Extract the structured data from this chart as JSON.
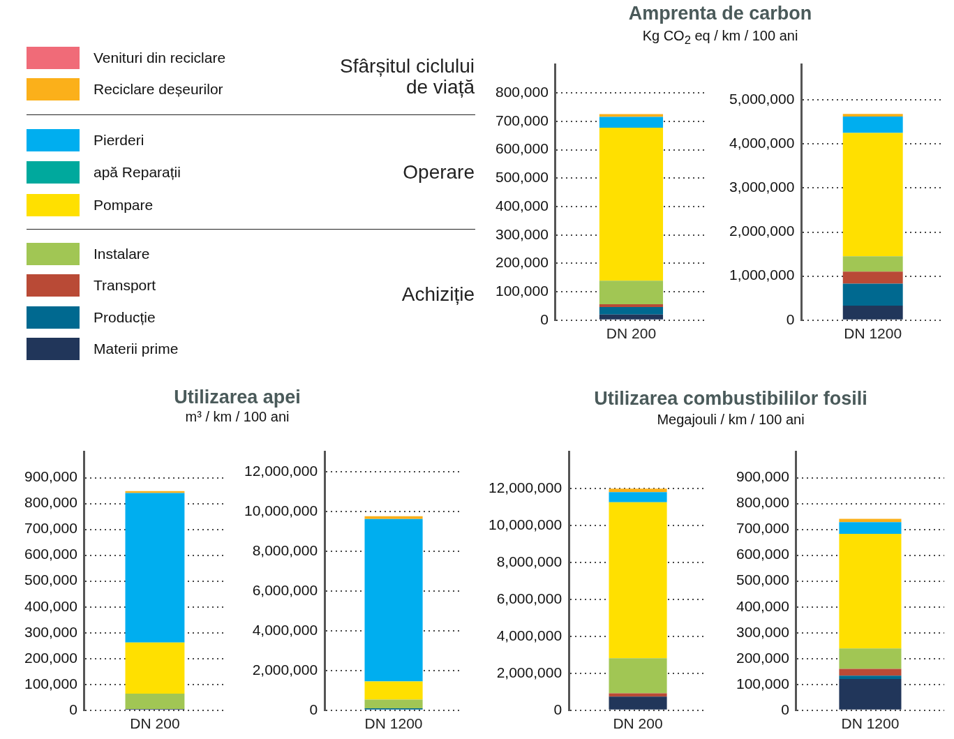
{
  "chart_data": [
    {
      "type": "bar",
      "title": "Amprenta de carbon",
      "subtitle": "Kg CO$_{2}$ eq / km / 100 ani",
      "categories": [
        "DN 200"
      ],
      "stacked": true,
      "grid": "y",
      "legend": "left",
      "annotations": [
        "Sfârșitul ciclului de viață",
        "Operare",
        "Achiziție"
      ],
      "ylim": [
        0,
        900000
      ],
      "yticks": [
        {
          "value": 0,
          "label": "0"
        },
        {
          "value": 100000,
          "label": "100,000"
        },
        {
          "value": 200000,
          "label": "200,000"
        },
        {
          "value": 300000,
          "label": "300,000"
        },
        {
          "value": 400000,
          "label": "400,000"
        },
        {
          "value": 500000,
          "label": "500,000"
        },
        {
          "value": 600000,
          "label": "600,000"
        },
        {
          "value": 700000,
          "label": "700,000"
        },
        {
          "value": 800000,
          "label": "800,000"
        }
      ],
      "series": [
        {
          "name": "Materii prime",
          "color": "#21365a",
          "values": [
            20000
          ]
        },
        {
          "name": "Producție",
          "color": "#006990",
          "values": [
            26000
          ]
        },
        {
          "name": "Transport",
          "color": "#b94a36",
          "values": [
            10000
          ]
        },
        {
          "name": "Instalare",
          "color": "#a1c654",
          "values": [
            83000
          ]
        },
        {
          "name": "Pompare",
          "color": "#ffe000",
          "values": [
            539000
          ]
        },
        {
          "name": "apă Reparații",
          "color": "#00a99d",
          "values": [
            null
          ]
        },
        {
          "name": "Pierderi",
          "color": "#00aeef",
          "values": [
            38000
          ]
        },
        {
          "name": "Reciclare deșeurilor",
          "color": "#fbb01a",
          "values": [
            10000
          ]
        },
        {
          "name": "Venituri din reciclare",
          "color": "#f06b78",
          "values": [
            null
          ]
        }
      ]
    },
    {
      "type": "bar",
      "categories": [
        "DN 1200"
      ],
      "stacked": true,
      "grid": "y",
      "ylim": [
        0,
        5800000
      ],
      "yticks": [
        {
          "value": 0,
          "label": "0"
        },
        {
          "value": 1000000,
          "label": "1,000,000"
        },
        {
          "value": 2000000,
          "label": "2,000,000"
        },
        {
          "value": 3000000,
          "label": "3,000,000"
        },
        {
          "value": 4000000,
          "label": "4,000,000"
        },
        {
          "value": 5000000,
          "label": "5,000,000"
        }
      ],
      "series": [
        {
          "color": "#21365a",
          "values": [
            330000
          ]
        },
        {
          "color": "#006990",
          "values": [
            500000
          ]
        },
        {
          "color": "#b94a36",
          "values": [
            270000
          ]
        },
        {
          "color": "#a1c654",
          "values": [
            350000
          ]
        },
        {
          "color": "#ffe000",
          "values": [
            2800000
          ]
        },
        {
          "color": "#00a99d",
          "values": [
            null
          ]
        },
        {
          "color": "#00aeef",
          "values": [
            370000
          ]
        },
        {
          "color": "#fbb01a",
          "values": [
            60000
          ]
        },
        {
          "color": "#f06b78",
          "values": [
            null
          ]
        }
      ]
    },
    {
      "type": "bar",
      "title": "Utilizarea apei",
      "subtitle": "m³ / km / 100 ani",
      "categories": [
        "DN 200"
      ],
      "stacked": true,
      "grid": "y",
      "ylim": [
        0,
        1000000
      ],
      "yticks": [
        {
          "value": 0,
          "label": "0"
        },
        {
          "value": 100000,
          "label": "100,000"
        },
        {
          "value": 200000,
          "label": "200,000"
        },
        {
          "value": 300000,
          "label": "300,000"
        },
        {
          "value": 400000,
          "label": "400,000"
        },
        {
          "value": 500000,
          "label": "500,000"
        },
        {
          "value": 600000,
          "label": "600,000"
        },
        {
          "value": 700000,
          "label": "700,000"
        },
        {
          "value": 800000,
          "label": "800,000"
        },
        {
          "value": 900000,
          "label": "900,000"
        }
      ],
      "series": [
        {
          "color": "#21365a",
          "values": [
            5000
          ]
        },
        {
          "color": "#006990",
          "values": [
            null
          ]
        },
        {
          "color": "#b94a36",
          "values": [
            null
          ]
        },
        {
          "color": "#a1c654",
          "values": [
            59000
          ]
        },
        {
          "color": "#ffe000",
          "values": [
            198000
          ]
        },
        {
          "color": "#00a99d",
          "values": [
            null
          ]
        },
        {
          "color": "#00aeef",
          "values": [
            579000
          ]
        },
        {
          "color": "#fbb01a",
          "values": [
            7000
          ]
        },
        {
          "color": "#f06b78",
          "values": [
            null
          ]
        }
      ]
    },
    {
      "type": "bar",
      "categories": [
        "DN 1200"
      ],
      "stacked": true,
      "grid": "y",
      "ylim": [
        0,
        13000000
      ],
      "yticks": [
        {
          "value": 0,
          "label": "0"
        },
        {
          "value": 2000000,
          "label": "2,000,000"
        },
        {
          "value": 4000000,
          "label": "4,000,000"
        },
        {
          "value": 6000000,
          "label": "6,000,000"
        },
        {
          "value": 8000000,
          "label": "8,000,000"
        },
        {
          "value": 10000000,
          "label": "10,000,000"
        },
        {
          "value": 12000000,
          "label": "12,000,000"
        }
      ],
      "series": [
        {
          "color": "#21365a",
          "values": [
            null
          ]
        },
        {
          "color": "#006990",
          "values": [
            100000
          ]
        },
        {
          "color": "#b94a36",
          "values": [
            null
          ]
        },
        {
          "color": "#a1c654",
          "values": [
            440000
          ]
        },
        {
          "color": "#ffe000",
          "values": [
            910000
          ]
        },
        {
          "color": "#00a99d",
          "values": [
            null
          ]
        },
        {
          "color": "#00aeef",
          "values": [
            8170000
          ]
        },
        {
          "color": "#fbb01a",
          "values": [
            140000
          ]
        },
        {
          "color": "#f06b78",
          "values": [
            null
          ]
        }
      ]
    },
    {
      "type": "bar",
      "title": "Utilizarea combustibililor fosili",
      "subtitle": "Megajouli / km / 100 ani",
      "categories": [
        "DN 200"
      ],
      "stacked": true,
      "grid": "y",
      "ylim": [
        0,
        14000000
      ],
      "yticks": [
        {
          "value": 0,
          "label": "0"
        },
        {
          "value": 2000000,
          "label": "2,000,000"
        },
        {
          "value": 4000000,
          "label": "4,000,000"
        },
        {
          "value": 6000000,
          "label": "6,000,000"
        },
        {
          "value": 8000000,
          "label": "8,000,000"
        },
        {
          "value": 10000000,
          "label": "10,000,000"
        },
        {
          "value": 12000000,
          "label": "12,000,000"
        }
      ],
      "series": [
        {
          "color": "#21365a",
          "values": [
            740000
          ]
        },
        {
          "color": "#006990",
          "values": [
            null
          ]
        },
        {
          "color": "#b94a36",
          "values": [
            180000
          ]
        },
        {
          "color": "#a1c654",
          "values": [
            1900000
          ]
        },
        {
          "color": "#ffe000",
          "values": [
            8450000
          ]
        },
        {
          "color": "#00a99d",
          "values": [
            null
          ]
        },
        {
          "color": "#00aeef",
          "values": [
            550000
          ]
        },
        {
          "color": "#fbb01a",
          "values": [
            190000
          ]
        },
        {
          "color": "#f06b78",
          "values": [
            null
          ]
        }
      ]
    },
    {
      "type": "bar",
      "categories": [
        "DN 1200"
      ],
      "stacked": true,
      "grid": "y",
      "ylim": [
        0,
        1000000
      ],
      "yticks": [
        {
          "value": 0,
          "label": "0"
        },
        {
          "value": 100000,
          "label": "100,000"
        },
        {
          "value": 200000,
          "label": "200,000"
        },
        {
          "value": 300000,
          "label": "300,000"
        },
        {
          "value": 400000,
          "label": "400,000"
        },
        {
          "value": 500000,
          "label": "500,000"
        },
        {
          "value": 600000,
          "label": "600,000"
        },
        {
          "value": 700000,
          "label": "700,000"
        },
        {
          "value": 800000,
          "label": "800,000"
        },
        {
          "value": 900000,
          "label": "900,000"
        }
      ],
      "series": [
        {
          "color": "#21365a",
          "values": [
            121000
          ]
        },
        {
          "color": "#006990",
          "values": [
            13000
          ]
        },
        {
          "color": "#b94a36",
          "values": [
            26000
          ]
        },
        {
          "color": "#a1c654",
          "values": [
            79000
          ]
        },
        {
          "color": "#ffe000",
          "values": [
            444000
          ]
        },
        {
          "color": "#00a99d",
          "values": [
            null
          ]
        },
        {
          "color": "#00aeef",
          "values": [
            45000
          ]
        },
        {
          "color": "#fbb01a",
          "values": [
            13000
          ]
        },
        {
          "color": "#f06b78",
          "values": [
            null
          ]
        }
      ]
    }
  ]
}
